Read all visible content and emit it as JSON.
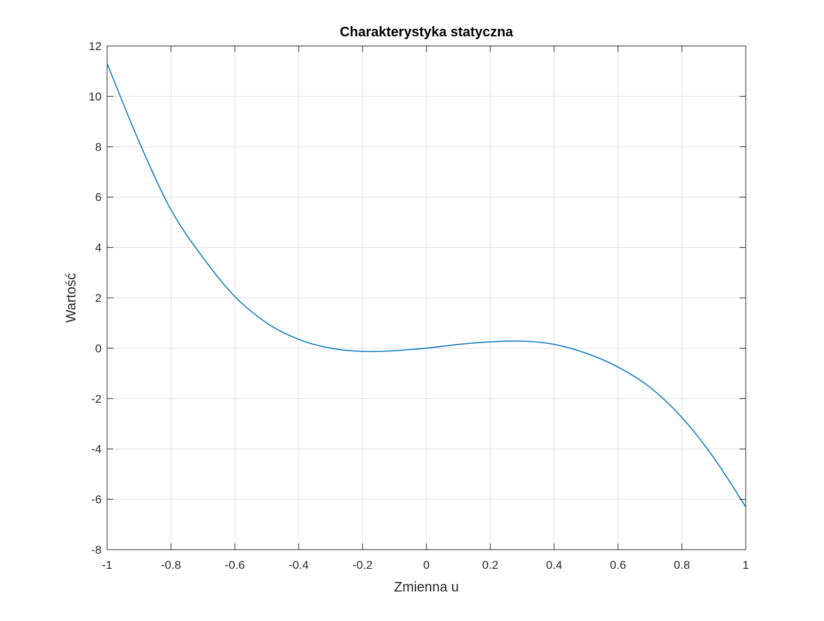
{
  "chart_data": {
    "type": "line",
    "title": "Charakterystyka statyczna",
    "xlabel": "Zmienna u",
    "ylabel": "Wartość",
    "xlim": [
      -1,
      1
    ],
    "ylim": [
      -8,
      12
    ],
    "xticks": [
      -1,
      -0.8,
      -0.6,
      -0.4,
      -0.2,
      0,
      0.2,
      0.4,
      0.6,
      0.8,
      1
    ],
    "yticks": [
      -8,
      -6,
      -4,
      -2,
      0,
      2,
      4,
      6,
      8,
      10,
      12
    ],
    "xtick_labels": [
      "-1",
      "-0.8",
      "-0.6",
      "-0.4",
      "-0.2",
      "0",
      "0.2",
      "0.4",
      "0.6",
      "0.8",
      "1"
    ],
    "ytick_labels": [
      "-8",
      "-6",
      "-4",
      "-2",
      "0",
      "2",
      "4",
      "6",
      "8",
      "10",
      "12"
    ],
    "grid": true,
    "line_color": "#0072bd",
    "series": [
      {
        "x": [
          -1,
          -0.9,
          -0.8,
          -0.7,
          -0.6,
          -0.5,
          -0.4,
          -0.3,
          -0.2,
          -0.1,
          0,
          0.1,
          0.2,
          0.3,
          0.4,
          0.5,
          0.6,
          0.7,
          0.8,
          0.9,
          1
        ],
        "y": [
          11.3,
          8.2,
          5.5,
          3.6,
          2.05,
          1.0,
          0.35,
          0.0,
          -0.13,
          -0.1,
          0.0,
          0.15,
          0.25,
          0.28,
          0.15,
          -0.2,
          -0.75,
          -1.55,
          -2.75,
          -4.35,
          -6.3
        ]
      }
    ]
  }
}
